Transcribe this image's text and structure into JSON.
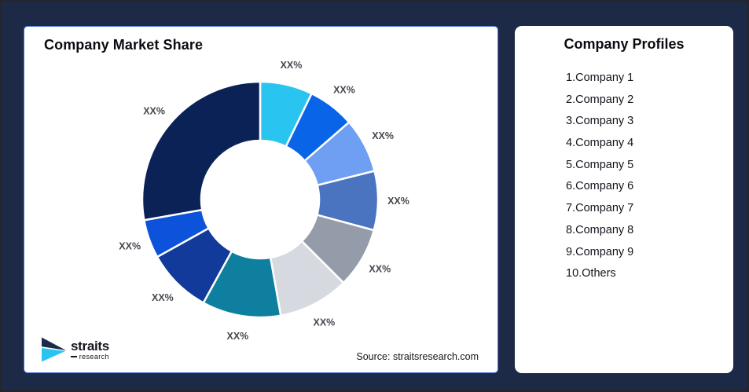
{
  "page": {
    "background_color": "#1D2A47",
    "panel_color": "#FFFFFF",
    "panel_border_color": "#4A72D8"
  },
  "chart_panel": {
    "title": "Company Market Share",
    "source": "Source: straitsresearch.com",
    "logo": {
      "name": "straits",
      "sub": "research",
      "mark_navy": "#1B2A4A",
      "mark_cyan": "#29C5F1"
    }
  },
  "profiles_panel": {
    "title": "Company Profiles",
    "items": [
      "1.Company 1",
      "2.Company 2",
      "3.Company 3",
      "4.Company 4",
      "5.Company 5",
      "6.Company 6",
      "7.Company 7",
      "8.Company 8",
      "9.Company 9",
      "10.Others"
    ]
  },
  "chart_data": {
    "type": "pie",
    "subtype": "donut",
    "title": "Company Market Share",
    "start_angle_deg": 0,
    "direction": "clockwise",
    "inner_radius_ratio": 0.5,
    "categories": [
      "Company 1",
      "Company 2",
      "Company 3",
      "Company 4",
      "Company 5",
      "Company 6",
      "Company 7",
      "Company 8",
      "Company 9",
      "Others"
    ],
    "data_labels": [
      "XX%",
      "XX%",
      "XX%",
      "XX%",
      "XX%",
      "XX%",
      "XX%",
      "XX%",
      "XX%",
      "XX%"
    ],
    "values_pct_estimated": [
      7.2,
      6.4,
      7.5,
      8.1,
      8.3,
      9.7,
      10.8,
      8.9,
      5.3,
      27.8
    ],
    "colors": [
      "#29C4F0",
      "#0A64E8",
      "#6F9FF2",
      "#4A73C0",
      "#949CAA",
      "#D6D9DF",
      "#0E7F9E",
      "#123A9B",
      "#0C52DA",
      "#0B2257"
    ],
    "label_color": "#44484F",
    "slice_gap_color": "#FFFFFF",
    "legend_position": "none"
  }
}
